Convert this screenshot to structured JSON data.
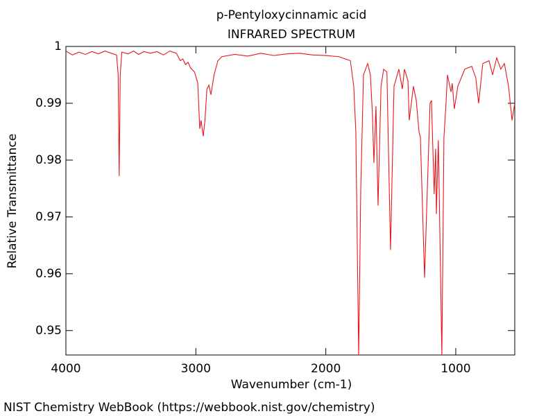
{
  "chart_data": {
    "type": "line",
    "title": "p-Pentyloxycinnamic acid",
    "subtitle": "INFRARED SPECTRUM",
    "x_label": "Wavenumber (cm-1)",
    "y_label": "Relative Transmittance",
    "footer": "NIST Chemistry WebBook (https://webbook.nist.gov/chemistry)",
    "color": "#e8141c",
    "xlim": [
      4000,
      546
    ],
    "ylim": [
      0.9457,
      1
    ],
    "xticks": [
      4000,
      3000,
      2000,
      1000
    ],
    "yticks": [
      1,
      0.99,
      0.98,
      0.97,
      0.96,
      0.95
    ],
    "x": [
      4000,
      3950,
      3900,
      3850,
      3800,
      3750,
      3700,
      3650,
      3610,
      3598,
      3590,
      3582,
      3570,
      3520,
      3480,
      3440,
      3400,
      3350,
      3300,
      3250,
      3200,
      3150,
      3120,
      3100,
      3080,
      3060,
      3040,
      3010,
      2985,
      2970,
      2960,
      2943,
      2930,
      2915,
      2900,
      2884,
      2860,
      2830,
      2800,
      2700,
      2600,
      2500,
      2400,
      2300,
      2200,
      2100,
      2000,
      1900,
      1850,
      1811,
      1785,
      1769,
      1747,
      1731,
      1710,
      1678,
      1657,
      1641,
      1630,
      1614,
      1598,
      1575,
      1555,
      1530,
      1502,
      1475,
      1438,
      1411,
      1395,
      1368,
      1358,
      1326,
      1304,
      1283,
      1272,
      1240,
      1198,
      1187,
      1166,
      1155,
      1149,
      1134,
      1107,
      1091,
      1075,
      1064,
      1037,
      1027,
      1011,
      984,
      931,
      877,
      846,
      824,
      792,
      744,
      717,
      685,
      653,
      626,
      594,
      567,
      546
    ],
    "values": [
      0.9992,
      0.9985,
      0.999,
      0.9986,
      0.9991,
      0.9987,
      0.9992,
      0.9988,
      0.9985,
      0.995,
      0.9772,
      0.995,
      0.999,
      0.9987,
      0.9992,
      0.9986,
      0.9991,
      0.9988,
      0.9991,
      0.9985,
      0.9992,
      0.9988,
      0.9975,
      0.9978,
      0.9968,
      0.9972,
      0.9962,
      0.9955,
      0.9935,
      0.9855,
      0.987,
      0.9842,
      0.987,
      0.9925,
      0.9932,
      0.9915,
      0.995,
      0.9975,
      0.9982,
      0.9986,
      0.9983,
      0.9988,
      0.9984,
      0.9987,
      0.9988,
      0.9985,
      0.9984,
      0.9982,
      0.9978,
      0.9975,
      0.993,
      0.985,
      0.9455,
      0.975,
      0.995,
      0.997,
      0.995,
      0.988,
      0.9795,
      0.9895,
      0.972,
      0.993,
      0.996,
      0.9955,
      0.9642,
      0.993,
      0.996,
      0.9925,
      0.996,
      0.994,
      0.987,
      0.993,
      0.9905,
      0.985,
      0.984,
      0.9593,
      0.99,
      0.9905,
      0.974,
      0.982,
      0.9705,
      0.9835,
      0.9455,
      0.984,
      0.99,
      0.995,
      0.992,
      0.9935,
      0.989,
      0.993,
      0.996,
      0.9965,
      0.9945,
      0.99,
      0.997,
      0.9975,
      0.995,
      0.998,
      0.996,
      0.997,
      0.993,
      0.987,
      0.99
    ]
  }
}
